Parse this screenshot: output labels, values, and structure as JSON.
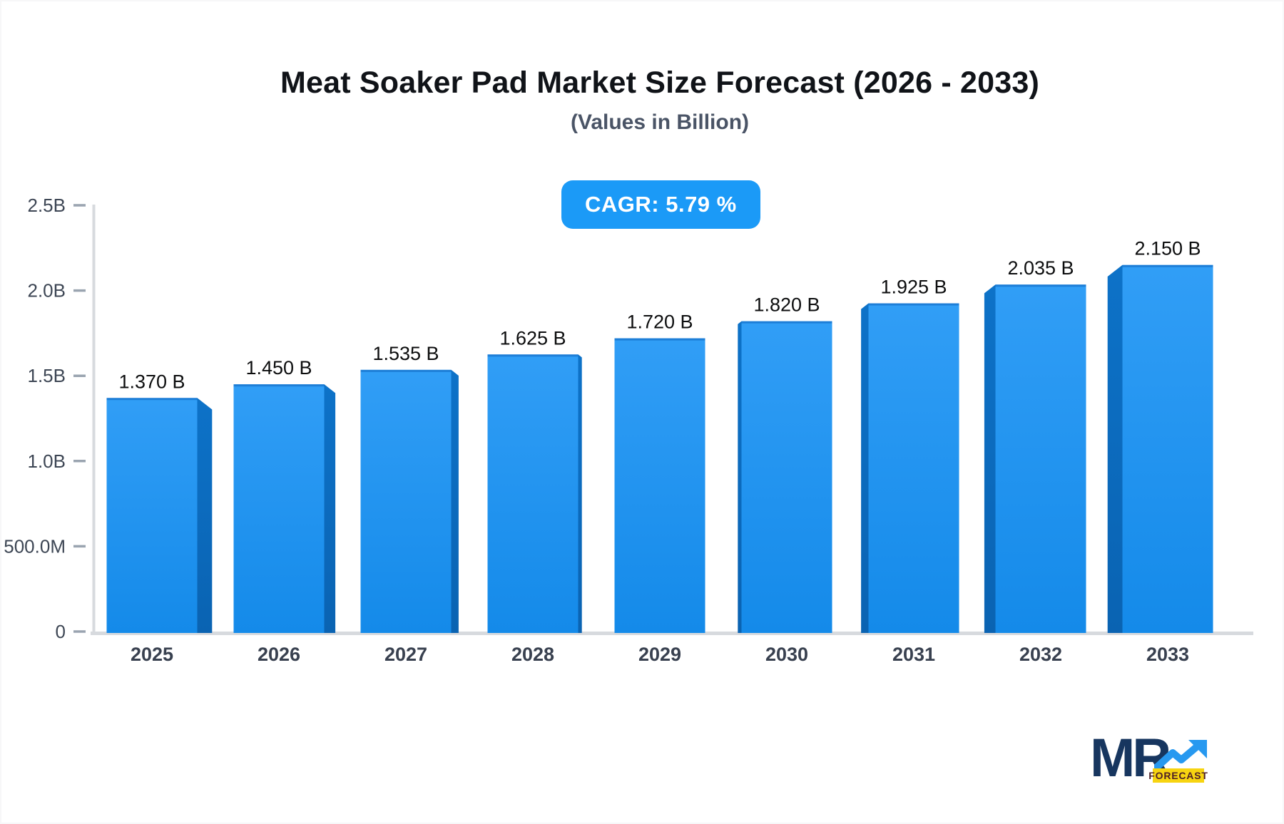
{
  "header": {
    "title": "Meat Soaker Pad Market Size Forecast (2026 - 2033)",
    "subtitle": "(Values in Billion)",
    "cagr_badge": "CAGR: 5.79 %"
  },
  "logo": {
    "mr": "MR",
    "forecast": "FORECAST"
  },
  "colors": {
    "badge_bg": "#1b9af7",
    "bar_face_top": "#319ef6",
    "bar_face_bottom": "#148ae9",
    "bar_top_edge": "#0d65bd",
    "bar_side_top": "#0d72c8",
    "bar_side_bottom": "#0a63b2",
    "axis_line": "#d7dade",
    "tick_dash": "#9aa4b0",
    "axis_text": "#3d4654",
    "year_text": "#38404f",
    "value_text": "#0c0d0e",
    "logo_navy": "#17365f",
    "logo_blue": "#2799f0",
    "logo_yellow": "#f7d411"
  },
  "chart_data": {
    "type": "bar",
    "title": "Meat Soaker Pad Market Size Forecast (2026 - 2033)",
    "subtitle": "(Values in Billion)",
    "cagr": "5.79 %",
    "unit": "Billion USD",
    "categories": [
      "2025",
      "2026",
      "2027",
      "2028",
      "2029",
      "2030",
      "2031",
      "2032",
      "2033"
    ],
    "values": [
      1.37,
      1.45,
      1.535,
      1.625,
      1.72,
      1.82,
      1.925,
      2.035,
      2.15
    ],
    "value_labels": [
      "1.370 B",
      "1.450 B",
      "1.535 B",
      "1.625 B",
      "1.720 B",
      "1.820 B",
      "1.925 B",
      "2.035 B",
      "2.150 B"
    ],
    "y_ticks": [
      {
        "label": "0",
        "value": 0
      },
      {
        "label": "500.0M",
        "value": 0.5
      },
      {
        "label": "1.0B",
        "value": 1.0
      },
      {
        "label": "1.5B",
        "value": 1.5
      },
      {
        "label": "2.0B",
        "value": 2.0
      },
      {
        "label": "2.5B",
        "value": 2.5
      }
    ],
    "ylim": [
      0,
      2.5
    ],
    "grid": false,
    "legend": false,
    "style": "3d-perspective-bars"
  }
}
